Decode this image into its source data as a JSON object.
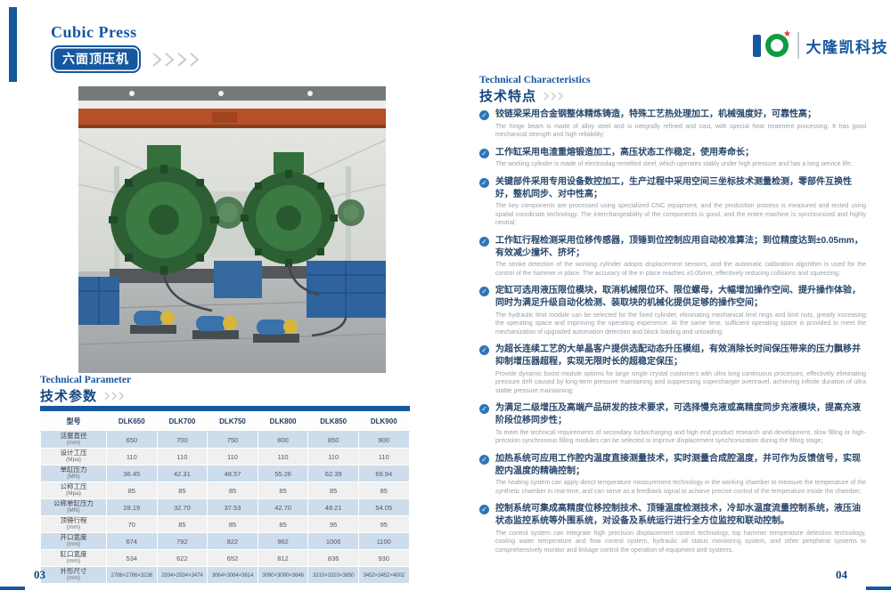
{
  "colors": {
    "accent_blue": "#1558a0",
    "navy_text": "#14467e",
    "logo_green": "#109a44",
    "logo_red": "#d6352b",
    "check_blue": "#2e75b6",
    "table_row_blue": "#cdddeb",
    "table_row_gray": "#f0f0f0",
    "crane_orange": "#b5502a",
    "machine_green": "#2f6d38",
    "tank_blue": "#2e639f"
  },
  "page_left": {
    "header": {
      "title_en": "Cubic Press",
      "title_zh": "六面顶压机"
    },
    "photo_desc": "factory-interior-with-green-cubic-press-machines-and-blue-hydraulic-tanks",
    "section": {
      "title_en": "Technical Parameter",
      "title_zh": "技术参数"
    },
    "table": {
      "model_label": "型号",
      "columns": [
        "DLK650",
        "DLK700",
        "DLK750",
        "DLK800",
        "DLK850",
        "DLK900"
      ],
      "rows": [
        {
          "label": "活塞直径",
          "unit": "(mm)",
          "values": [
            "650",
            "700",
            "750",
            "800",
            "850",
            "900"
          ]
        },
        {
          "label": "设计工压",
          "unit": "(Mpa)",
          "values": [
            "110",
            "110",
            "110",
            "110",
            "110",
            "110"
          ]
        },
        {
          "label": "单缸压力",
          "unit": "(MN)",
          "values": [
            "36.45",
            "42.31",
            "48.57",
            "55.26",
            "62.39",
            "69.94"
          ]
        },
        {
          "label": "公称工压",
          "unit": "(Mpa)",
          "values": [
            "85",
            "85",
            "85",
            "85",
            "85",
            "85"
          ]
        },
        {
          "label": "公称单缸压力",
          "unit": "(MN)",
          "values": [
            "28.19",
            "32.70",
            "37.53",
            "42.70",
            "48.21",
            "54.05"
          ]
        },
        {
          "label": "顶锤行程",
          "unit": "(mm)",
          "values": [
            "70",
            "85",
            "85",
            "85",
            "95",
            "95"
          ]
        },
        {
          "label": "开口宽度",
          "unit": "(mm)",
          "values": [
            "674",
            "792",
            "822",
            "962",
            "1006",
            "1100"
          ]
        },
        {
          "label": "缸口宽度",
          "unit": "(mm)",
          "values": [
            "534",
            "622",
            "652",
            "812",
            "836",
            "930"
          ]
        },
        {
          "label": "外形尺寸",
          "unit": "(mm)",
          "values": [
            "2786×2786×3236",
            "2934×2934×3474",
            "3064×3064×3614",
            "3090×3090×3646",
            "3310×3310×3850",
            "3452×3452×4002"
          ]
        }
      ]
    },
    "page_number": "03"
  },
  "page_right": {
    "logo": {
      "text": "大隆凯科技"
    },
    "section": {
      "title_en": "Technical Characteristics",
      "title_zh": "技术特点"
    },
    "features": [
      {
        "zh": "铰链梁采用合金钢整体精炼铸造，特殊工艺热处理加工，机械强度好，可靠性高；",
        "en": "The hinge beam is made of alloy steel and is integrally refined and cast, with special heat treatment processing. It has good mechanical strength and high reliability;"
      },
      {
        "zh": "工作缸采用电渣重熔锻造加工，高压状态工作稳定，使用寿命长；",
        "en": "The working cylinder is made of electroslag remelted steel, which operates stably under high pressure and has a long service life;"
      },
      {
        "zh": "关键部件采用专用设备数控加工，生产过程中采用空间三坐标技术测量检测，零部件互换性好，整机同步、对中性高；",
        "en": "The key components are processed using specialized CNC equipment, and the production process is measured and tested using spatial coordinate technology. The interchangeability of the components is good, and the entire machine is synchronized and highly neutral;"
      },
      {
        "zh": "工作缸行程检测采用位移传感器，顶锤到位控制应用自动校准算法；到位精度达到±0.05mm，有效减少撞坏、挤坏；",
        "en": "The stroke detection of the working cylinder adopts displacement sensors, and the automatic calibration algorithm is used for the control of the hammer in place. The accuracy of the in place reaches ±0.05mm, effectively reducing collisions and squeezing;"
      },
      {
        "zh": "定缸可选用液压限位模块，取消机械限位环、限位螺母，大幅增加操作空间、提升操作体验，同时为满足升级自动化检测、装取块的机械化提供足够的操作空间；",
        "en": "The hydraulic limit module can be selected for the fixed cylinder, eliminating mechanical limit rings and limit nuts, greatly increasing the operating space and improving the operating experience. At the same time, sufficient operating space is provided to meet the mechanization of upgraded automation detection and block loading and unloading;"
      },
      {
        "zh": "为超长连续工艺的大单晶客户提供选配动态升压模组，有效消除长时间保压带来的压力飘移并抑制增压器超程，实现无限时长的超稳定保压；",
        "en": "Provide dynamic boost module options for large single crystal customers with ultra long continuous processes, effectively eliminating pressure drift caused by long-term pressure maintaining and suppressing supercharger overtravel, achieving infinite duration of ultra stable pressure maintaining;"
      },
      {
        "zh": "为满足二级增压及高端产品研发的技术要求，可选择慢充液或高精度同步充液模块，提高充液阶段位移同步性；",
        "en": "To meet the technical requirements of secondary turbocharging and high end product research and development, slow filling or high-precision synchronous filling modules can be selected to improve displacement synchronization during the filling stage;"
      },
      {
        "zh": "加热系统可应用工作腔内温度直接测量技术，实时测量合成腔温度，并可作为反馈信号，实现腔内温度的精确控制；",
        "en": "The heating system can apply direct temperature measurement technology in the working chamber to measure the temperature of the synthetic chamber in real-time, and can serve as a feedback signal to achieve precise control of the temperature inside the chamber;"
      },
      {
        "zh": "控制系统可集成高精度位移控制技术、顶锤温度检测技术，冷却水温度流量控制系统，液压油状态监控系统等外围系统，对设备及系统运行进行全方位监控和联动控制。",
        "en": "The control system can integrate high precision displacement control technology, top hammer temperature detection technology, cooling water temperature and flow control system, hydraulic oil status monitoring system, and other peripheral systems to comprehensively monitor and linkage control the operation of equipment and systems."
      }
    ],
    "page_number": "04"
  }
}
